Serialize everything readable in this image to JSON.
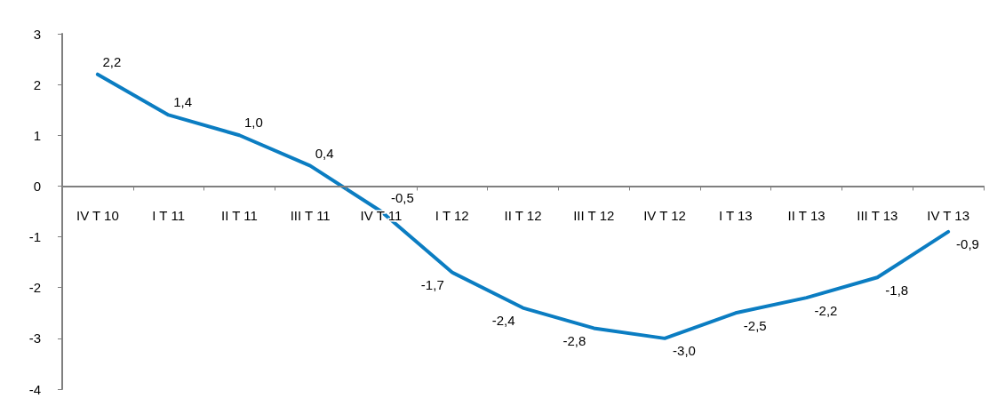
{
  "chart_data": {
    "type": "line",
    "categories": [
      "IV T 10",
      "I T 11",
      "II T 11",
      "III T 11",
      "IV T 11",
      "I T 12",
      "II T 12",
      "III T 12",
      "IV T 12",
      "I T 13",
      "II T 13",
      "III T 13",
      "IV T 13"
    ],
    "series": [
      {
        "color": "#0b7dc2",
        "values": [
          2.2,
          1.4,
          1.0,
          0.4,
          -0.5,
          -1.7,
          -2.4,
          -2.8,
          -3.0,
          -2.5,
          -2.2,
          -1.8,
          -0.9
        ],
        "value_labels": [
          "2,2",
          "1,4",
          "1,0",
          "0,4",
          "-0,5",
          "-1,7",
          "-2,4",
          "-2,8",
          "-3,0",
          "-2,5",
          "-2,2",
          "-1,8",
          "-0,9"
        ]
      }
    ],
    "ylim": [
      -4,
      3
    ],
    "yticks": [
      -4,
      -3,
      -2,
      -1,
      0,
      1,
      2,
      3
    ],
    "grid": false,
    "marker": "none",
    "line_style": "solid"
  }
}
